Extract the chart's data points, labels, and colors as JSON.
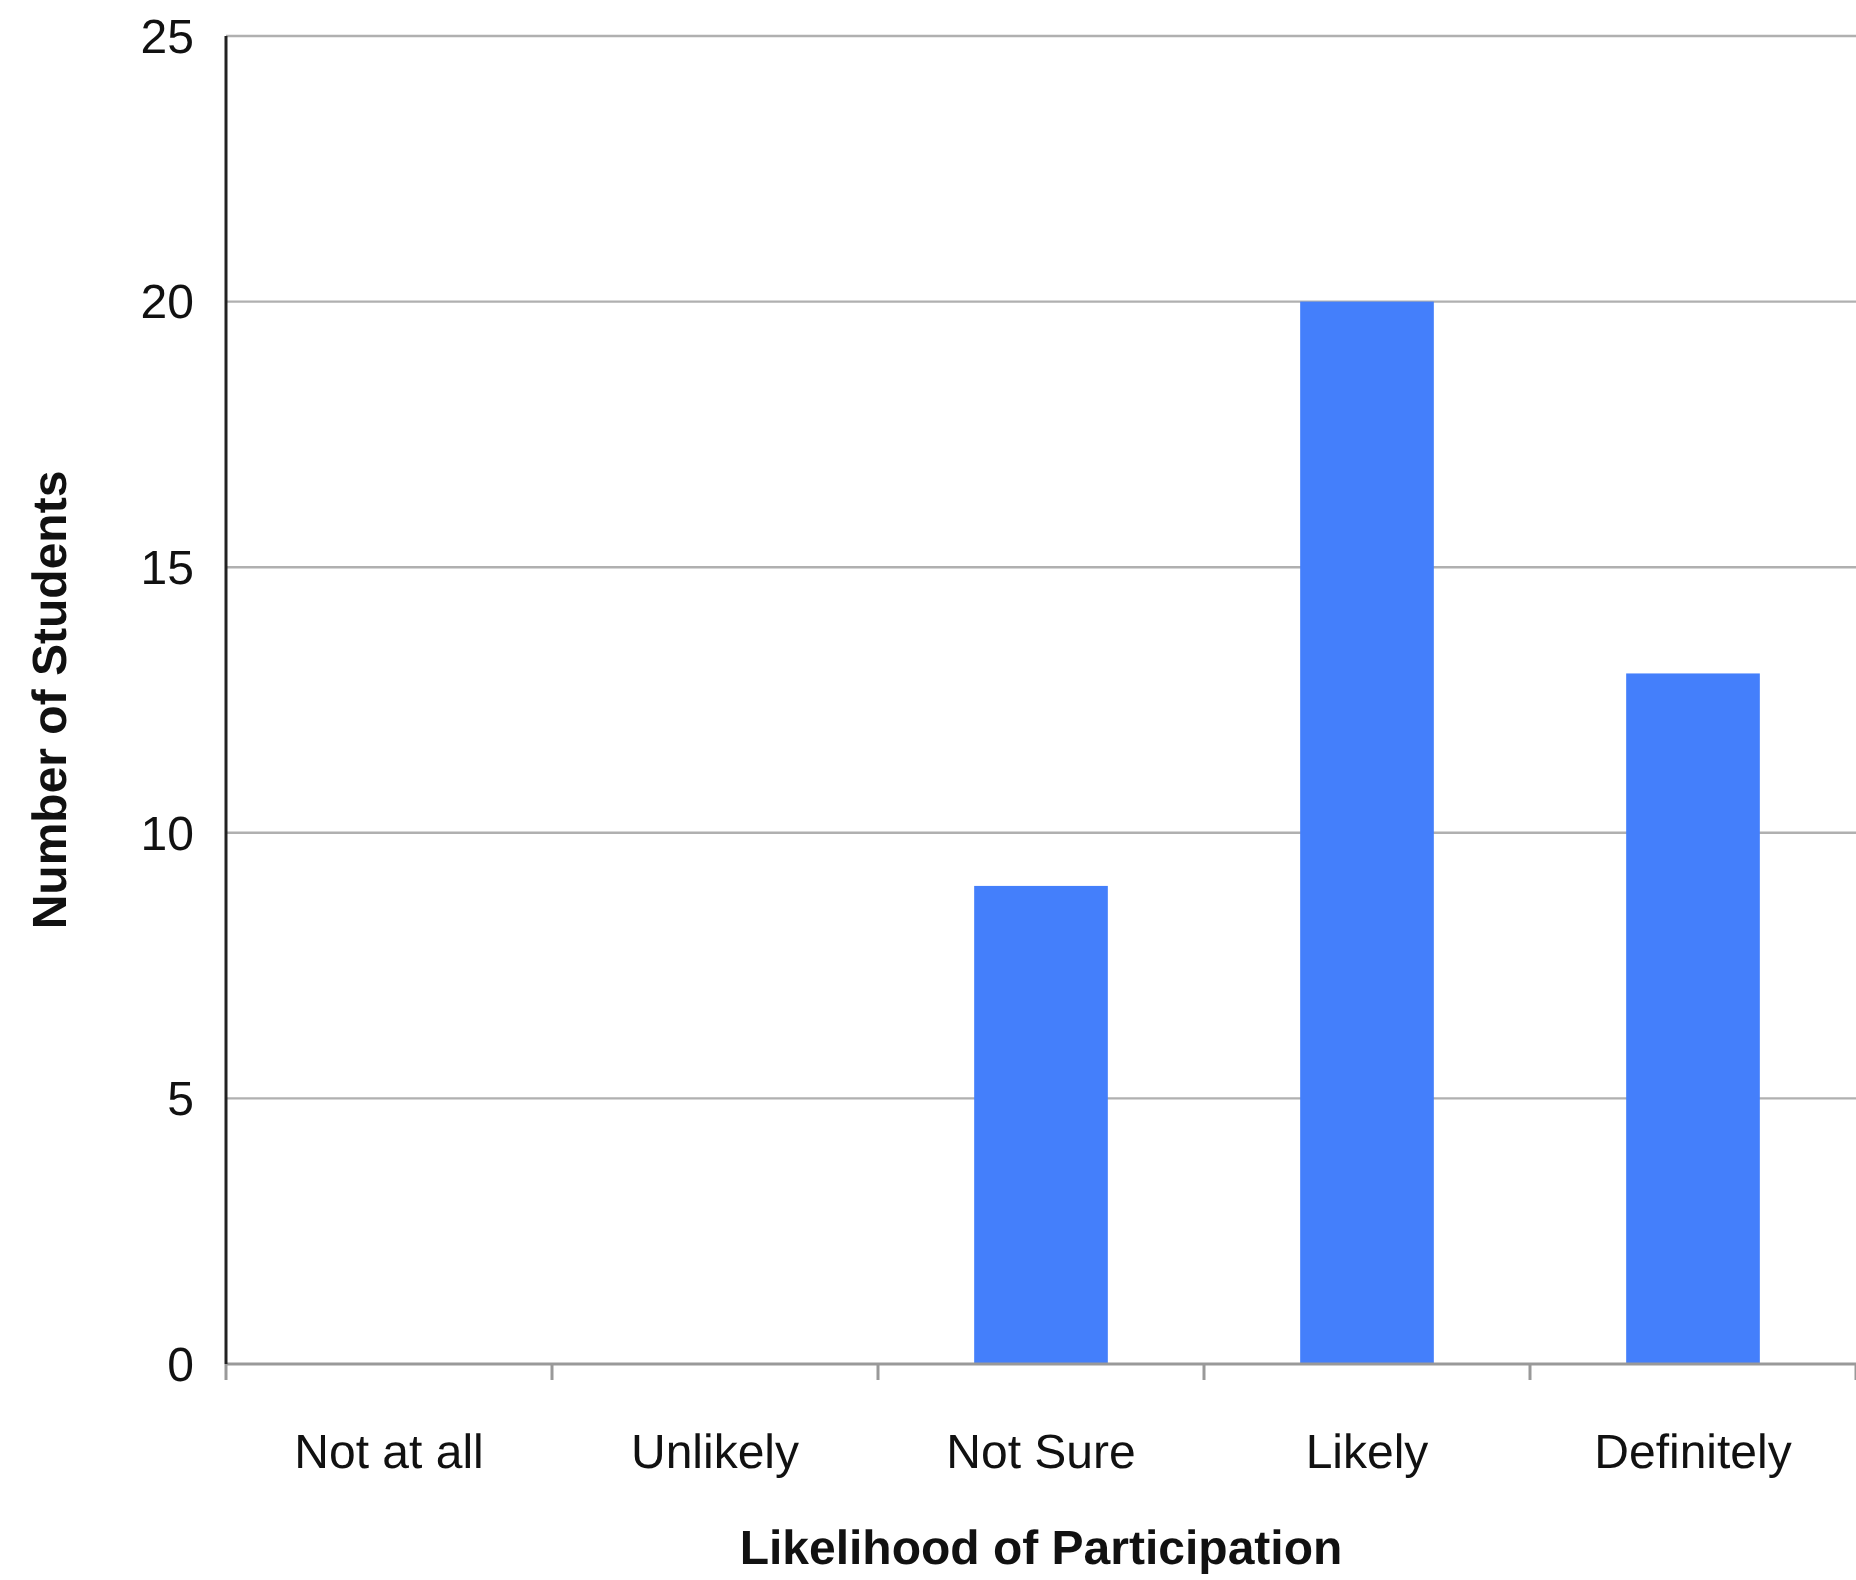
{
  "chart_data": {
    "type": "bar",
    "xlabel": "Likelihood of Participation",
    "ylabel": "Number of Students",
    "categories": [
      "Not at all",
      "Unlikely",
      "Not Sure",
      "Likely",
      "Definitely"
    ],
    "values": [
      0,
      0,
      9,
      20,
      13
    ],
    "color": "#447ffb",
    "ylim": [
      0,
      25
    ],
    "yticks": [
      0,
      5,
      10,
      15,
      20,
      25
    ],
    "grid": "y"
  }
}
